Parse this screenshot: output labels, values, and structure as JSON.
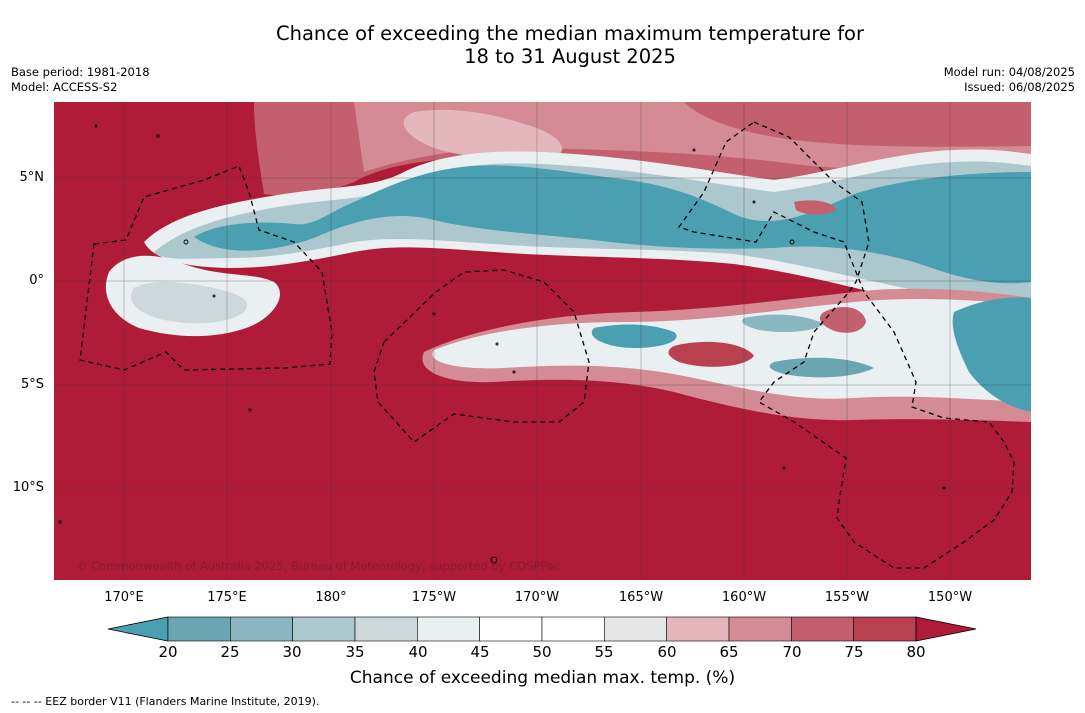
{
  "title": {
    "line1": "Chance of exceeding the median maximum temperature for",
    "line2": "18 to 31 August 2025"
  },
  "meta": {
    "base_period": "Base period: 1981-2018",
    "model": "Model: ACCESS-S2",
    "model_run": "Model run: 04/08/2025",
    "issued": "Issued: 06/08/2025"
  },
  "map": {
    "lat_ticks": [
      "5°N",
      "0°",
      "5°S",
      "10°S"
    ],
    "lon_ticks": [
      "170°E",
      "175°E",
      "180°",
      "175°W",
      "170°W",
      "165°W",
      "160°W",
      "155°W",
      "150°W"
    ],
    "copyright": "© Commonwealth of Australia 2025, Bureau of Meteorology, supported by COSPPac"
  },
  "colorbar": {
    "ticks": [
      "20",
      "25",
      "30",
      "35",
      "40",
      "45",
      "50",
      "55",
      "60",
      "65",
      "70",
      "75",
      "80"
    ],
    "colors": [
      "#6aa6b2",
      "#8ab6c2",
      "#acc7ce",
      "#cdd8db",
      "#eaeff1",
      "#ffffff",
      "#ffffff",
      "#e6e6e6",
      "#e3b7bc",
      "#d48b94",
      "#c4606d",
      "#b9404f"
    ],
    "low_color": "#4aa0b0",
    "high_color": "#b01c38",
    "label": "Chance of exceeding median max. temp. (%)"
  },
  "legend_note": "-- -- -- EEZ border V11 (Flanders Marine Institute, 2019)."
}
